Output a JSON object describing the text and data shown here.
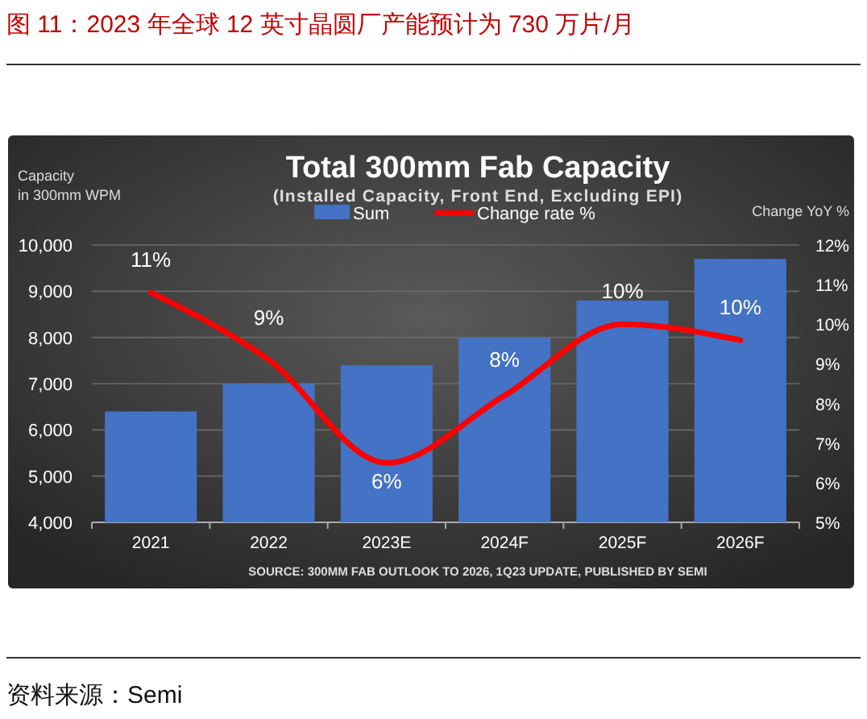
{
  "chart_data": {
    "type": "bar",
    "title": "Total 300mm Fab Capacity",
    "subtitle": "(Installed Capacity, Front End, Excluding EPI)",
    "ylabel": "Capacity in 300mm WPM",
    "y2label": "Change YoY %",
    "categories": [
      "2021",
      "2022",
      "2023E",
      "2024F",
      "2025F",
      "2026F"
    ],
    "series": [
      {
        "name": "Sum",
        "color": "#4472c4",
        "values": [
          6400,
          7000,
          7400,
          8000,
          8800,
          9700
        ]
      },
      {
        "name": "Change rate %",
        "type": "line",
        "axis": "y2",
        "color": "#ff0000",
        "values": [
          10.8,
          9.1,
          6.5,
          8.2,
          10,
          9.6
        ],
        "value_labels": [
          "11%",
          "9%",
          "6%",
          "8%",
          "10%",
          "10%"
        ]
      }
    ],
    "ylim": [
      4000,
      10000
    ],
    "yticks": [
      {
        "value": 4000,
        "label": "4,000"
      },
      {
        "value": 5000,
        "label": "5,000"
      },
      {
        "value": 6000,
        "label": "6,000"
      },
      {
        "value": 7000,
        "label": "7,000"
      },
      {
        "value": 8000,
        "label": "8,000"
      },
      {
        "value": 9000,
        "label": "9,000"
      },
      {
        "value": 10000,
        "label": "10,000"
      }
    ],
    "y2lim": [
      5,
      12
    ],
    "y2ticks": [
      {
        "value": 5,
        "label": "5%"
      },
      {
        "value": 6,
        "label": "6%"
      },
      {
        "value": 7,
        "label": "7%"
      },
      {
        "value": 8,
        "label": "8%"
      },
      {
        "value": 9,
        "label": "9%"
      },
      {
        "value": 10,
        "label": "10%"
      },
      {
        "value": 11,
        "label": "11%"
      },
      {
        "value": 12,
        "label": "12%"
      }
    ],
    "grid": "y",
    "legend": "top",
    "marker": "none",
    "line_style": "solid",
    "annotations": [
      "图 11：2023 年全球 12 英寸晶圆厂产能预计为 730 万片/月",
      "SOURCE: 300MM FAB OUTLOOK TO 2026, 1Q23 UPDATE, PUBLISHED BY SEMI",
      "资料来源：Semi"
    ]
  }
}
